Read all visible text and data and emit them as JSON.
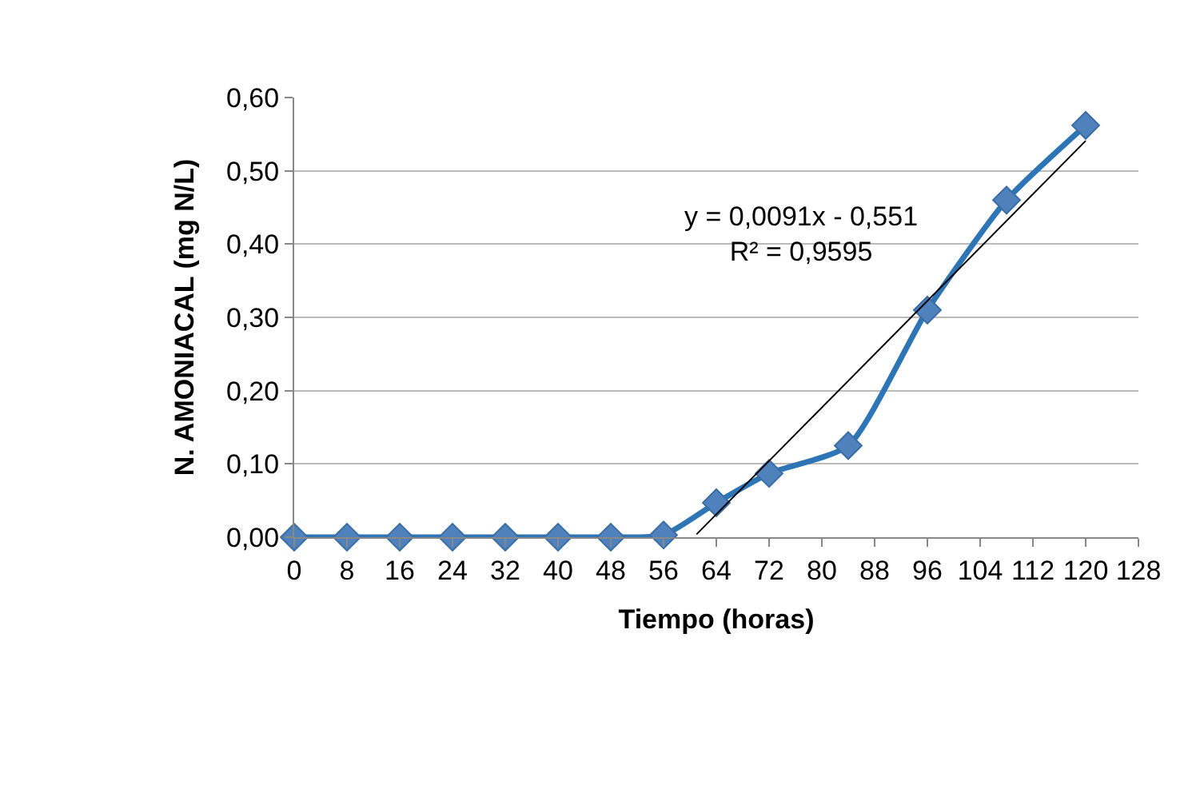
{
  "chart_data": {
    "type": "line",
    "xlabel": "Tiempo (horas)",
    "ylabel": "N. AMONIACAL (mg N/L)",
    "x": [
      0,
      8,
      16,
      24,
      32,
      40,
      48,
      56,
      64,
      72,
      84,
      96,
      108,
      120
    ],
    "series": [
      {
        "color": "#2e75b6",
        "values": [
          0,
          0,
          0,
          0,
          0,
          0,
          0,
          0.003,
          0.047,
          0.087,
          0.125,
          0.31,
          0.46,
          0.562
        ],
        "marker": "diamond"
      },
      {
        "color": "#000000",
        "x": [
          61,
          120
        ],
        "values": [
          0.004,
          0.541
        ],
        "marker": "none"
      }
    ],
    "xlim": [
      0,
      128
    ],
    "xticks": [
      0,
      8,
      16,
      24,
      32,
      40,
      48,
      56,
      64,
      72,
      80,
      88,
      96,
      104,
      112,
      120,
      128
    ],
    "ylim": [
      0,
      0.6
    ],
    "yticks": [
      {
        "value": 0,
        "label": "0,00"
      },
      {
        "value": 0.1,
        "label": "0,10"
      },
      {
        "value": 0.2,
        "label": "0,20"
      },
      {
        "value": 0.3,
        "label": "0,30"
      },
      {
        "value": 0.4,
        "label": "0,40"
      },
      {
        "value": 0.5,
        "label": "0,50"
      },
      {
        "value": 0.6,
        "label": "0,60"
      }
    ],
    "grid": "y",
    "annotations": [
      "y = 0,0091x - 0,551\nR² = 0,9595"
    ]
  }
}
